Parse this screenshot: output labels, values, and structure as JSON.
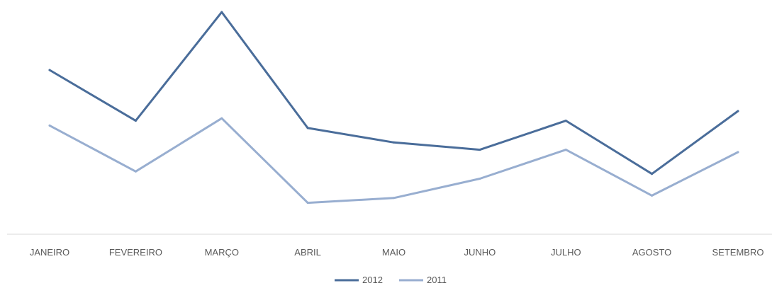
{
  "chart_data": {
    "type": "line",
    "categories": [
      "JANEIRO",
      "FEVEREIRO",
      "MARÇO",
      "ABRIL",
      "MAIO",
      "JUNHO",
      "JULHO",
      "AGOSTO",
      "SETEMBRO"
    ],
    "series": [
      {
        "name": "2012",
        "color": "#4a6d9a",
        "values": [
          68,
          47,
          92,
          44,
          38,
          35,
          47,
          25,
          51
        ]
      },
      {
        "name": "2011",
        "color": "#98aed0",
        "values": [
          45,
          26,
          48,
          13,
          15,
          23,
          35,
          16,
          34
        ]
      }
    ],
    "ylim": [
      0,
      97
    ],
    "grid": false,
    "legend_position": "bottom"
  }
}
